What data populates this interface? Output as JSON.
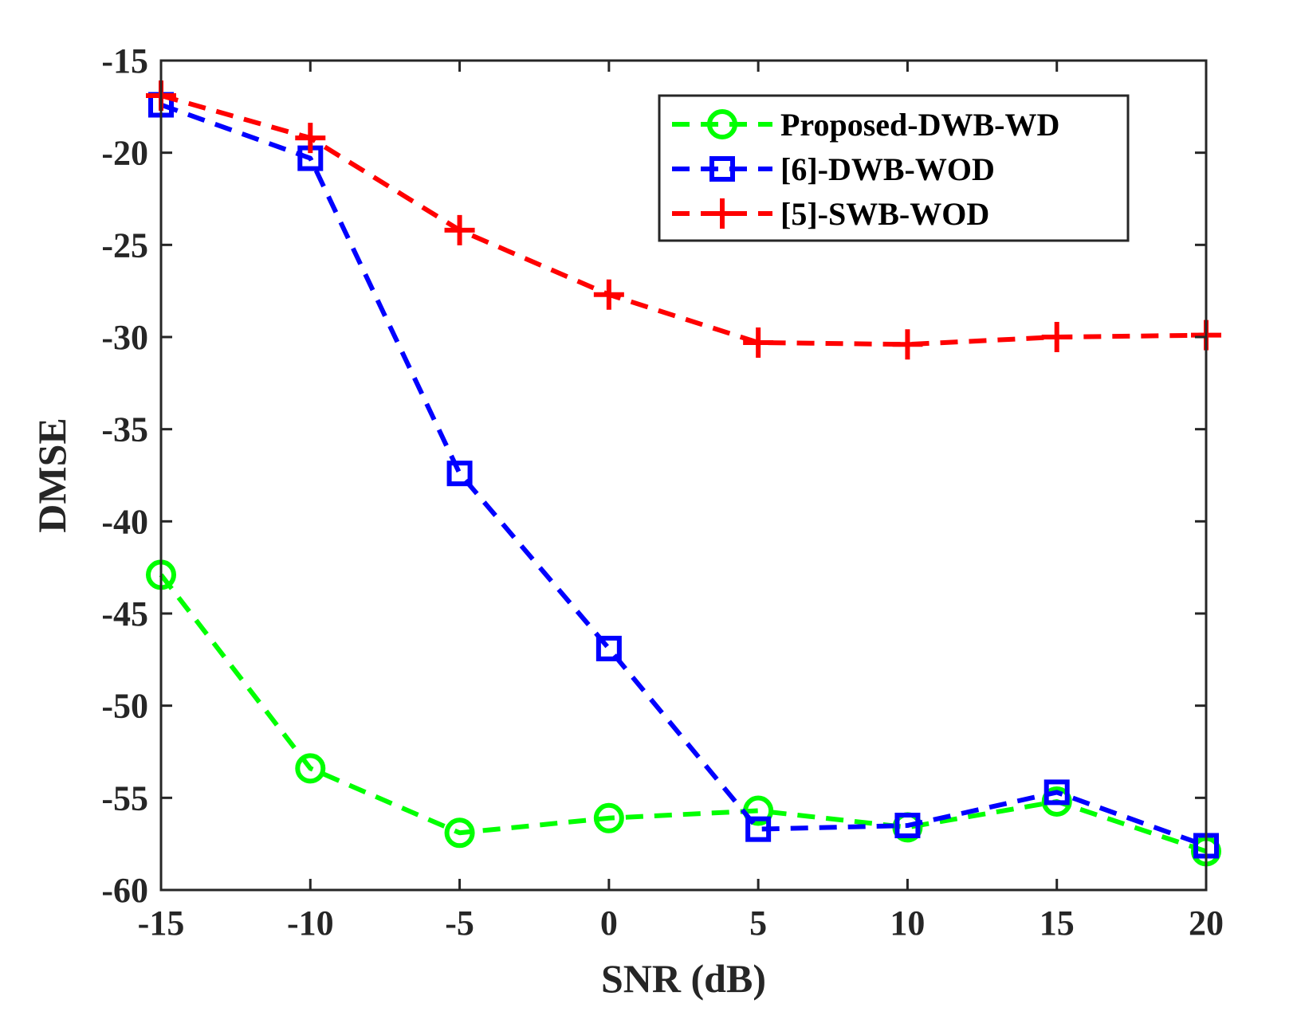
{
  "chart_data": {
    "type": "line",
    "title": "",
    "xlabel": "SNR (dB)",
    "ylabel": "DMSE",
    "xlim": [
      -15,
      20
    ],
    "ylim": [
      -60,
      -15
    ],
    "xticks": [
      -15,
      -10,
      -5,
      0,
      5,
      10,
      15,
      20
    ],
    "yticks": [
      -15,
      -20,
      -25,
      -30,
      -35,
      -40,
      -45,
      -50,
      -55,
      -60
    ],
    "x": [
      -15,
      -10,
      -5,
      0,
      5,
      10,
      15,
      20
    ],
    "grid": false,
    "legend_position": "top-right",
    "series": [
      {
        "name": "Proposed-DWB-WD",
        "color": "#00ff00",
        "marker": "circle",
        "line_style": "dashed",
        "values": [
          -42.9,
          -53.4,
          -56.9,
          -56.1,
          -55.7,
          -56.6,
          -55.2,
          -57.9
        ]
      },
      {
        "name": "[6]-DWB-WOD",
        "color": "#0000ff",
        "marker": "square",
        "line_style": "dashed",
        "values": [
          -17.4,
          -20.3,
          -37.4,
          -46.9,
          -56.7,
          -56.5,
          -54.7,
          -57.6
        ]
      },
      {
        "name": "[5]-SWB-WOD",
        "color": "#ff0000",
        "marker": "plus",
        "line_style": "dashed",
        "values": [
          -16.9,
          -19.2,
          -24.2,
          -27.7,
          -30.3,
          -30.4,
          -30.0,
          -29.9
        ]
      }
    ]
  }
}
